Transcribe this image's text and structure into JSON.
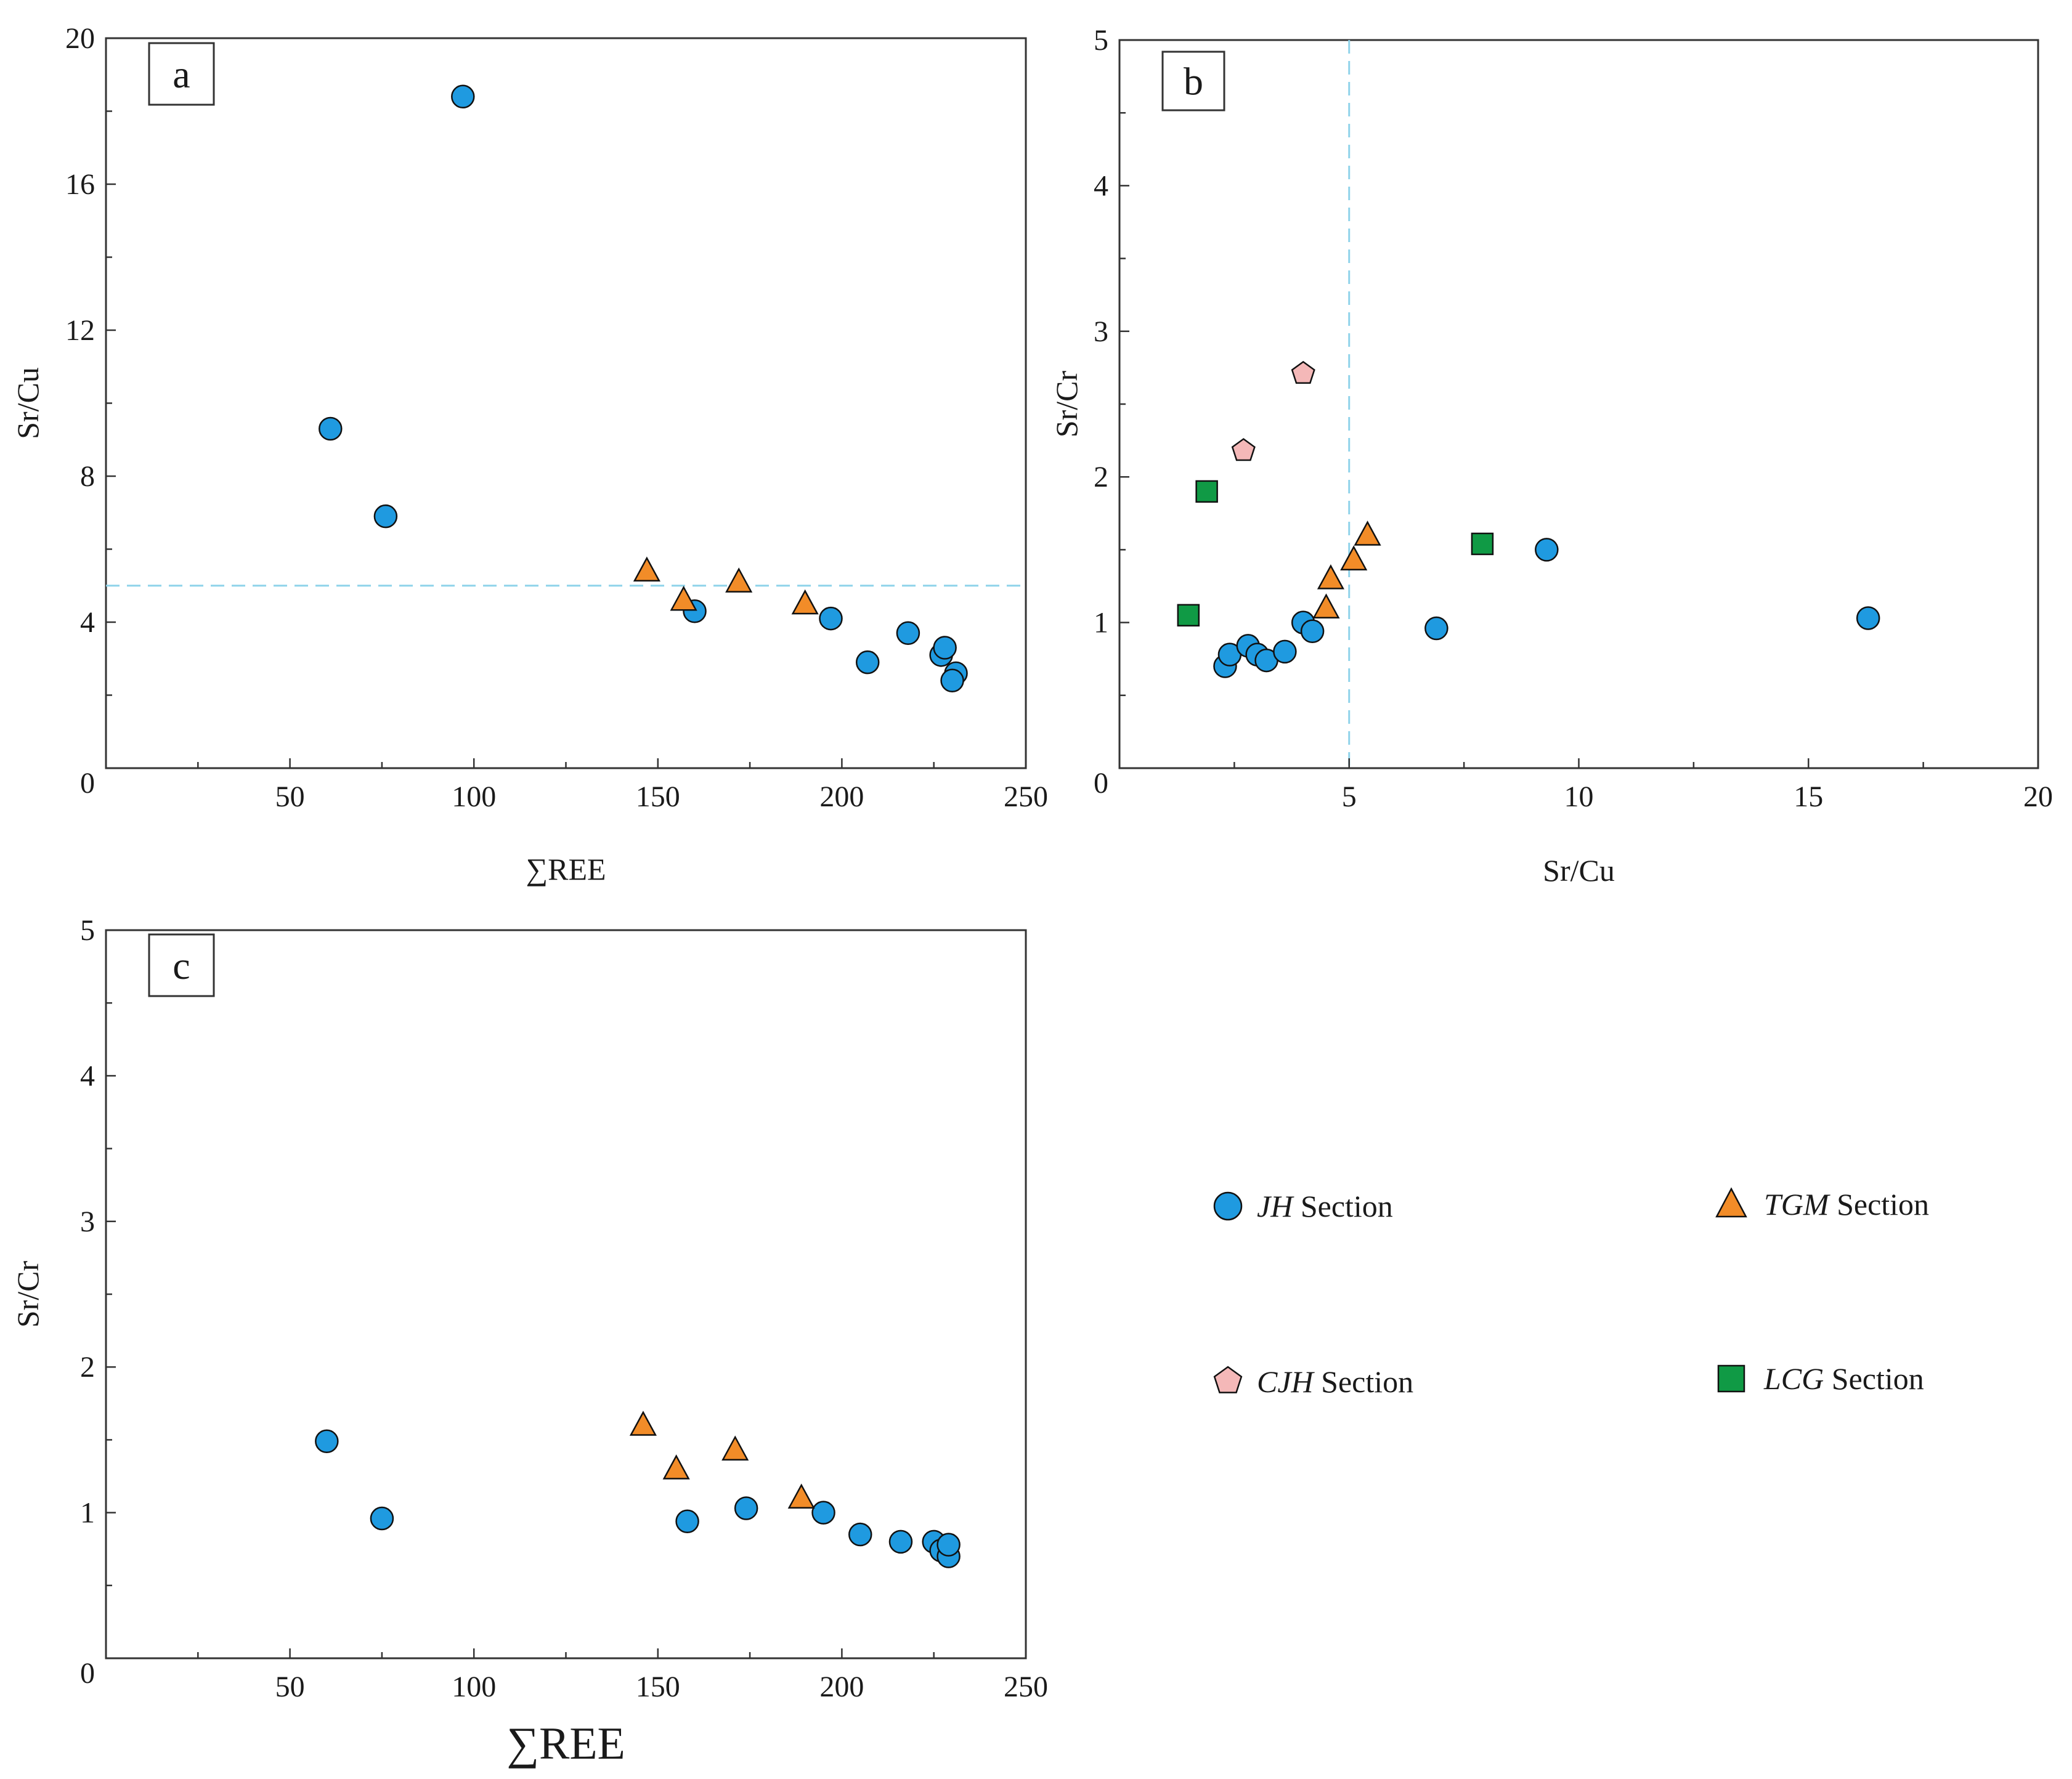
{
  "colors": {
    "JH": "#1f9ae0",
    "TGM": "#f28c28",
    "CJH": "#f4b8b8",
    "LCG": "#109a45",
    "threshold_line": "#8fd3ea",
    "axis": "#333333"
  },
  "legend": {
    "items": [
      {
        "key": "JH",
        "italic": "JH",
        "text": " Section",
        "marker": "circle"
      },
      {
        "key": "TGM",
        "italic": "TGM",
        "text": " Section",
        "marker": "triangle"
      },
      {
        "key": "CJH",
        "italic": "CJH",
        "text": " Section",
        "marker": "pentagon"
      },
      {
        "key": "LCG",
        "italic": "LCG",
        "text": " Section",
        "marker": "square"
      }
    ]
  },
  "chart_data": [
    {
      "panel": "a",
      "type": "scatter",
      "xlabel": "∑REE",
      "ylabel": "Sr/Cu",
      "xlim": [
        0,
        250
      ],
      "ylim": [
        0,
        20
      ],
      "xticks": [
        50,
        100,
        150,
        200,
        250
      ],
      "yticks": [
        4,
        8,
        12,
        16,
        20
      ],
      "origin_label": "0",
      "hline": 5,
      "series": [
        {
          "key": "JH",
          "points": [
            [
              61,
              9.3
            ],
            [
              76,
              6.9
            ],
            [
              97,
              18.4
            ],
            [
              160,
              4.3
            ],
            [
              197,
              4.1
            ],
            [
              207,
              2.9
            ],
            [
              218,
              3.7
            ],
            [
              227,
              3.1
            ],
            [
              228,
              3.3
            ],
            [
              231,
              2.6
            ],
            [
              230,
              2.4
            ]
          ]
        },
        {
          "key": "TGM",
          "points": [
            [
              147,
              5.4
            ],
            [
              157,
              4.6
            ],
            [
              172,
              5.1
            ],
            [
              190,
              4.5
            ]
          ]
        }
      ]
    },
    {
      "panel": "b",
      "type": "scatter",
      "xlabel": "Sr/Cu",
      "ylabel": "Sr/Cr",
      "xlim": [
        0,
        20
      ],
      "ylim": [
        0,
        5
      ],
      "xticks": [
        5,
        10,
        15,
        20
      ],
      "yticks": [
        1,
        2,
        3,
        4,
        5
      ],
      "origin_label": "0",
      "vline": 5,
      "series": [
        {
          "key": "JH",
          "points": [
            [
              2.3,
              0.7
            ],
            [
              2.4,
              0.78
            ],
            [
              2.8,
              0.84
            ],
            [
              3.0,
              0.78
            ],
            [
              3.2,
              0.74
            ],
            [
              3.6,
              0.8
            ],
            [
              4.0,
              1.0
            ],
            [
              4.2,
              0.94
            ],
            [
              6.9,
              0.96
            ],
            [
              9.3,
              1.5
            ],
            [
              16.3,
              1.03
            ]
          ]
        },
        {
          "key": "TGM",
          "points": [
            [
              4.5,
              1.1
            ],
            [
              4.6,
              1.3
            ],
            [
              5.1,
              1.43
            ],
            [
              5.4,
              1.6
            ]
          ]
        },
        {
          "key": "CJH",
          "points": [
            [
              2.7,
              2.18
            ],
            [
              4.0,
              2.71
            ]
          ]
        },
        {
          "key": "LCG",
          "points": [
            [
              1.5,
              1.05
            ],
            [
              1.9,
              1.9
            ],
            [
              7.9,
              1.54
            ]
          ]
        }
      ]
    },
    {
      "panel": "c",
      "type": "scatter",
      "xlabel": "∑REE",
      "ylabel": "Sr/Cr",
      "xlim": [
        0,
        250
      ],
      "ylim": [
        0,
        5
      ],
      "xticks": [
        50,
        100,
        150,
        200,
        250
      ],
      "yticks": [
        1,
        2,
        3,
        4,
        5
      ],
      "origin_label": "0",
      "series": [
        {
          "key": "JH",
          "points": [
            [
              60,
              1.49
            ],
            [
              75,
              0.96
            ],
            [
              158,
              0.94
            ],
            [
              174,
              1.03
            ],
            [
              195,
              1.0
            ],
            [
              205,
              0.85
            ],
            [
              216,
              0.8
            ],
            [
              225,
              0.8
            ],
            [
              227,
              0.74
            ],
            [
              229,
              0.7
            ],
            [
              229,
              0.78
            ]
          ]
        },
        {
          "key": "TGM",
          "points": [
            [
              146,
              1.6
            ],
            [
              155,
              1.3
            ],
            [
              171,
              1.43
            ],
            [
              189,
              1.1
            ]
          ]
        }
      ]
    }
  ]
}
